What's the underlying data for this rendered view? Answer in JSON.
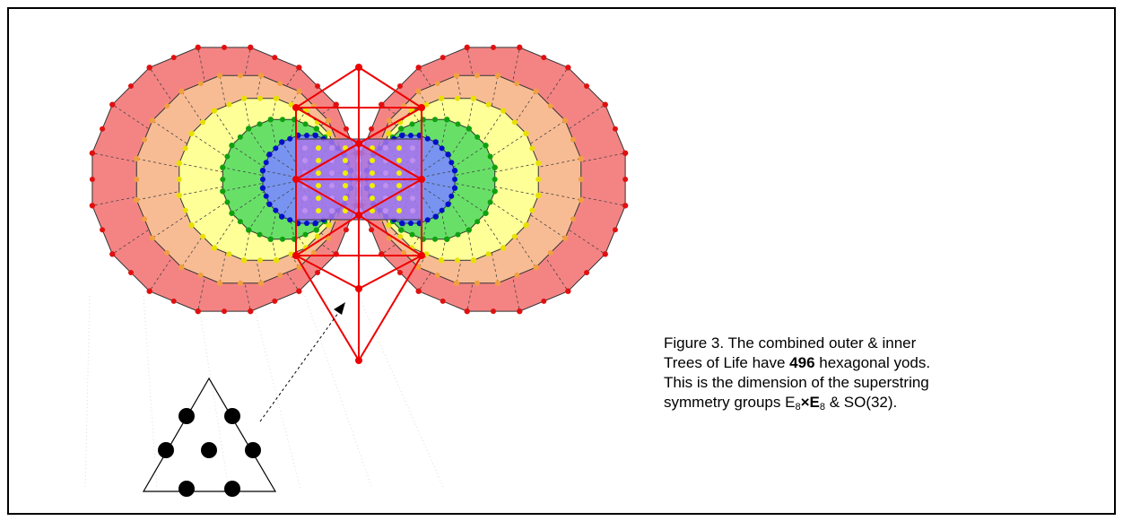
{
  "caption": {
    "lines": [
      [
        "Figure 3. The combined outer & inner"
      ],
      [
        "Trees of Life have ",
        "496",
        " hexagonal yods."
      ],
      [
        "This is the dimension of the superstring"
      ],
      [
        "symmetry groups E",
        "8",
        "×E",
        "8",
        " & SO(32)."
      ]
    ]
  }
}
